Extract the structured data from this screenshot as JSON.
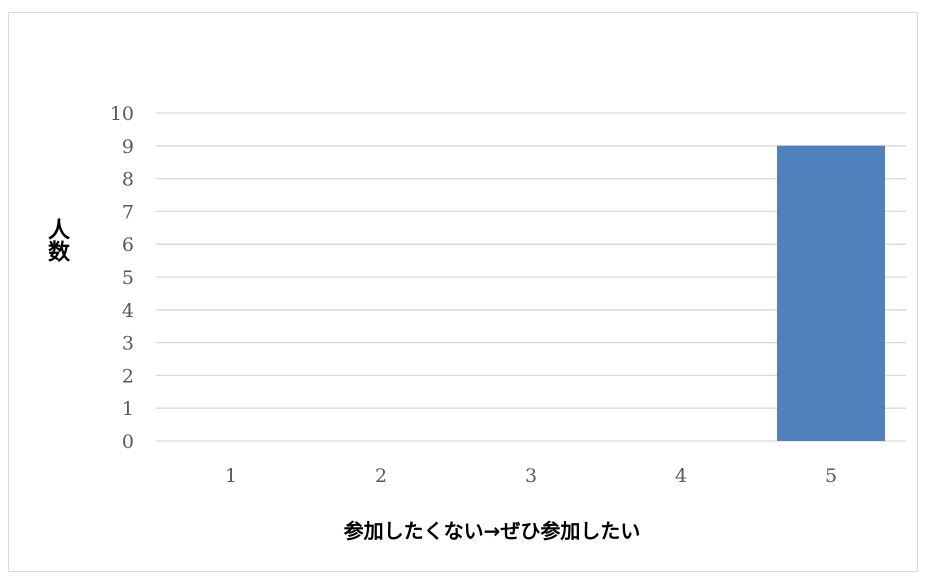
{
  "chart_data": {
    "type": "bar",
    "categories": [
      "1",
      "2",
      "3",
      "4",
      "5"
    ],
    "values": [
      0,
      0,
      0,
      0,
      9
    ],
    "title": "",
    "xlabel": "参加したくない→ぜひ参加したい",
    "ylabel": "人数",
    "ylim": [
      0,
      10
    ],
    "yticks": [
      "0",
      "1",
      "2",
      "3",
      "4",
      "5",
      "6",
      "7",
      "8",
      "9",
      "10"
    ],
    "grid": true,
    "legend": "none",
    "bar_color": "#4f81bd",
    "grid_color": "#d9d9d9"
  }
}
